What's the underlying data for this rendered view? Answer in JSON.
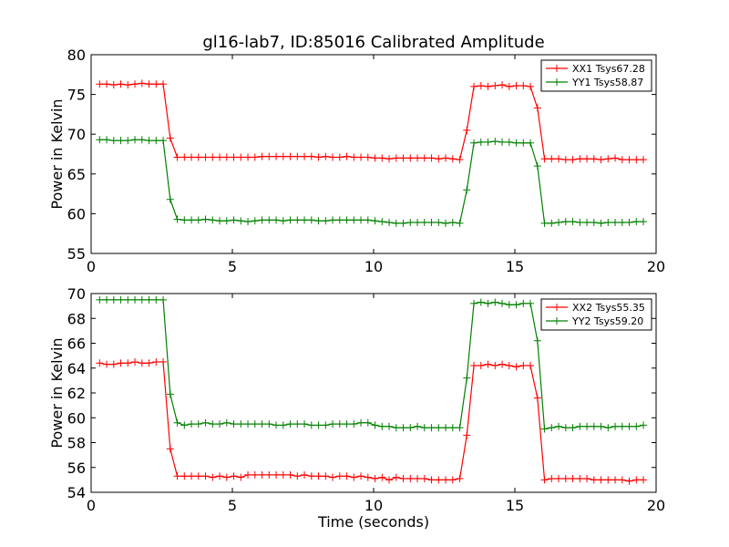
{
  "figure": {
    "title": "gl16-lab7, ID:85016 Calibrated Amplitude"
  },
  "chart_data": [
    {
      "type": "line",
      "title": "gl16-lab7, ID:85016 Calibrated Amplitude",
      "xlabel": "",
      "ylabel": "Power in Kelvin",
      "xlim": [
        0,
        20
      ],
      "ylim": [
        55,
        80
      ],
      "xticks": [
        0,
        5,
        10,
        15,
        20
      ],
      "yticks": [
        55,
        60,
        65,
        70,
        75,
        80
      ],
      "xtick_labels": [
        "0",
        "5",
        "10",
        "15",
        "20"
      ],
      "ytick_labels": [
        "55",
        "60",
        "65",
        "70",
        "75",
        "80"
      ],
      "grid": false,
      "legend_position": "top-right",
      "x": [
        0.3,
        0.55,
        0.8,
        1.05,
        1.3,
        1.55,
        1.8,
        2.05,
        2.3,
        2.55,
        2.8,
        3.05,
        3.3,
        3.55,
        3.8,
        4.05,
        4.3,
        4.55,
        4.8,
        5.05,
        5.3,
        5.55,
        5.8,
        6.05,
        6.3,
        6.55,
        6.8,
        7.05,
        7.3,
        7.55,
        7.8,
        8.05,
        8.3,
        8.55,
        8.8,
        9.05,
        9.3,
        9.55,
        9.8,
        10.05,
        10.3,
        10.55,
        10.8,
        11.05,
        11.3,
        11.55,
        11.8,
        12.05,
        12.3,
        12.55,
        12.8,
        13.05,
        13.3,
        13.55,
        13.8,
        14.05,
        14.3,
        14.55,
        14.8,
        15.05,
        15.3,
        15.55,
        15.8,
        16.05,
        16.3,
        16.55,
        16.8,
        17.05,
        17.3,
        17.55,
        17.8,
        18.05,
        18.3,
        18.55,
        18.8,
        19.05,
        19.3,
        19.55
      ],
      "series": [
        {
          "name": "XX1 Tsys67.28",
          "color": "#ff0000",
          "values": [
            76.3,
            76.3,
            76.2,
            76.3,
            76.2,
            76.3,
            76.4,
            76.3,
            76.3,
            76.3,
            69.5,
            67.1,
            67.1,
            67.1,
            67.1,
            67.1,
            67.1,
            67.1,
            67.1,
            67.1,
            67.1,
            67.1,
            67.1,
            67.2,
            67.2,
            67.2,
            67.2,
            67.2,
            67.2,
            67.2,
            67.2,
            67.1,
            67.2,
            67.1,
            67.1,
            67.2,
            67.1,
            67.1,
            67.1,
            67.0,
            67.0,
            66.9,
            67.0,
            67.0,
            67.0,
            67.0,
            67.0,
            67.0,
            66.9,
            67.0,
            66.9,
            66.8,
            70.5,
            76.0,
            76.1,
            76.0,
            76.1,
            76.2,
            76.0,
            76.1,
            76.1,
            76.0,
            73.3,
            66.9,
            66.9,
            66.9,
            66.8,
            66.8,
            66.9,
            66.9,
            66.9,
            66.8,
            66.9,
            67.0,
            66.8,
            66.8,
            66.8,
            66.8
          ]
        },
        {
          "name": "YY1 Tsys58.87",
          "color": "#008000",
          "values": [
            69.3,
            69.3,
            69.2,
            69.2,
            69.2,
            69.3,
            69.3,
            69.2,
            69.2,
            69.2,
            61.8,
            59.3,
            59.2,
            59.2,
            59.2,
            59.3,
            59.2,
            59.1,
            59.1,
            59.2,
            59.1,
            59.0,
            59.1,
            59.2,
            59.2,
            59.2,
            59.1,
            59.2,
            59.2,
            59.2,
            59.2,
            59.1,
            59.1,
            59.2,
            59.2,
            59.2,
            59.2,
            59.2,
            59.2,
            59.1,
            59.0,
            58.9,
            58.8,
            58.8,
            58.9,
            58.9,
            58.9,
            58.9,
            58.9,
            58.8,
            58.9,
            58.8,
            63.0,
            68.9,
            69.0,
            69.0,
            69.1,
            69.0,
            69.0,
            68.9,
            68.9,
            68.9,
            66.0,
            58.8,
            58.8,
            58.9,
            59.0,
            59.0,
            58.9,
            58.9,
            58.9,
            58.8,
            58.9,
            58.9,
            58.9,
            58.9,
            59.0,
            59.0
          ]
        }
      ]
    },
    {
      "type": "line",
      "title": "",
      "xlabel": "Time (seconds)",
      "ylabel": "Power in Kelvin",
      "xlim": [
        0,
        20
      ],
      "ylim": [
        54,
        70
      ],
      "xticks": [
        0,
        5,
        10,
        15,
        20
      ],
      "yticks": [
        54,
        56,
        58,
        60,
        62,
        64,
        66,
        68,
        70
      ],
      "xtick_labels": [
        "0",
        "5",
        "10",
        "15",
        "20"
      ],
      "ytick_labels": [
        "54",
        "56",
        "58",
        "60",
        "62",
        "64",
        "66",
        "68",
        "70"
      ],
      "grid": false,
      "legend_position": "top-right",
      "x": [
        0.3,
        0.55,
        0.8,
        1.05,
        1.3,
        1.55,
        1.8,
        2.05,
        2.3,
        2.55,
        2.8,
        3.05,
        3.3,
        3.55,
        3.8,
        4.05,
        4.3,
        4.55,
        4.8,
        5.05,
        5.3,
        5.55,
        5.8,
        6.05,
        6.3,
        6.55,
        6.8,
        7.05,
        7.3,
        7.55,
        7.8,
        8.05,
        8.3,
        8.55,
        8.8,
        9.05,
        9.3,
        9.55,
        9.8,
        10.05,
        10.3,
        10.55,
        10.8,
        11.05,
        11.3,
        11.55,
        11.8,
        12.05,
        12.3,
        12.55,
        12.8,
        13.05,
        13.3,
        13.55,
        13.8,
        14.05,
        14.3,
        14.55,
        14.8,
        15.05,
        15.3,
        15.55,
        15.8,
        16.05,
        16.3,
        16.55,
        16.8,
        17.05,
        17.3,
        17.55,
        17.8,
        18.05,
        18.3,
        18.55,
        18.8,
        19.05,
        19.3,
        19.55
      ],
      "series": [
        {
          "name": "XX2 Tsys55.35",
          "color": "#ff0000",
          "values": [
            64.4,
            64.3,
            64.3,
            64.4,
            64.4,
            64.5,
            64.4,
            64.4,
            64.5,
            64.5,
            57.5,
            55.3,
            55.3,
            55.3,
            55.3,
            55.3,
            55.2,
            55.3,
            55.2,
            55.3,
            55.2,
            55.4,
            55.4,
            55.4,
            55.4,
            55.4,
            55.4,
            55.4,
            55.3,
            55.4,
            55.3,
            55.3,
            55.3,
            55.2,
            55.3,
            55.3,
            55.2,
            55.3,
            55.2,
            55.1,
            55.2,
            55.0,
            55.2,
            55.1,
            55.1,
            55.1,
            55.1,
            55.0,
            55.0,
            55.0,
            55.0,
            55.1,
            58.6,
            64.2,
            64.2,
            64.3,
            64.2,
            64.3,
            64.2,
            64.1,
            64.2,
            64.2,
            61.6,
            55.0,
            55.1,
            55.1,
            55.1,
            55.1,
            55.1,
            55.1,
            55.0,
            55.0,
            55.0,
            55.0,
            55.0,
            54.9,
            55.0,
            55.0
          ]
        },
        {
          "name": "YY2 Tsys59.20",
          "color": "#008000",
          "values": [
            69.5,
            69.5,
            69.5,
            69.5,
            69.5,
            69.5,
            69.5,
            69.5,
            69.5,
            69.5,
            61.9,
            59.6,
            59.4,
            59.5,
            59.5,
            59.6,
            59.5,
            59.5,
            59.6,
            59.5,
            59.5,
            59.5,
            59.5,
            59.5,
            59.5,
            59.4,
            59.4,
            59.5,
            59.5,
            59.5,
            59.4,
            59.4,
            59.4,
            59.5,
            59.5,
            59.5,
            59.5,
            59.6,
            59.6,
            59.4,
            59.3,
            59.3,
            59.2,
            59.2,
            59.2,
            59.3,
            59.2,
            59.2,
            59.2,
            59.2,
            59.2,
            59.2,
            63.2,
            69.2,
            69.3,
            69.2,
            69.3,
            69.2,
            69.1,
            69.1,
            69.2,
            69.2,
            66.2,
            59.1,
            59.2,
            59.3,
            59.2,
            59.2,
            59.3,
            59.3,
            59.3,
            59.3,
            59.2,
            59.3,
            59.3,
            59.3,
            59.3,
            59.4
          ]
        }
      ]
    }
  ]
}
